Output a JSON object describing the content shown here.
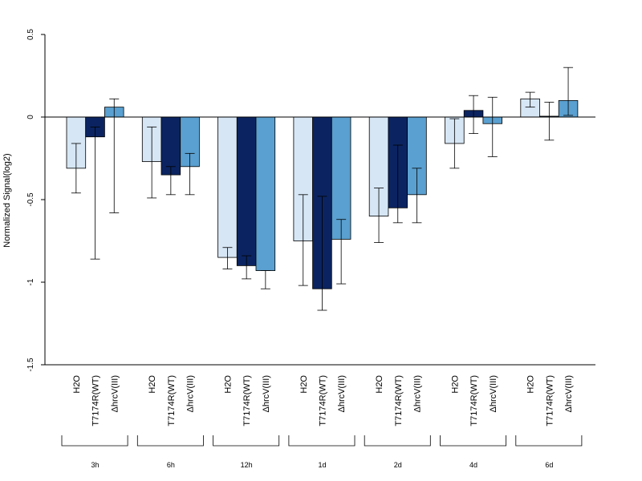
{
  "chart_data": {
    "type": "bar",
    "ylabel": "Normalized Signal(log2)",
    "ylim": [
      -1.5,
      0.5
    ],
    "yticks": [
      0.5,
      0,
      -0.5,
      -1,
      -1.5
    ],
    "ytick_labels": [
      "0.5",
      "0",
      "-0.5",
      "-1",
      "-1.5"
    ],
    "treatments": [
      "H2O",
      "T7174R(WT)",
      "ΔhrcV(III)"
    ],
    "groups": [
      "3h",
      "6h",
      "12h",
      "1d",
      "2d",
      "4d",
      "6d"
    ],
    "colors": [
      "#d6e6f5",
      "#0b2461",
      "#5aa0d0"
    ],
    "series": [
      {
        "values": [
          -0.31,
          -0.27,
          -0.85,
          -0.75,
          -0.6,
          -0.16,
          0.11
        ],
        "err_low": [
          -0.46,
          -0.49,
          -0.92,
          -1.02,
          -0.76,
          -0.31,
          0.06
        ],
        "err_high": [
          -0.16,
          -0.06,
          -0.79,
          -0.47,
          -0.43,
          -0.01,
          0.15
        ]
      },
      {
        "values": [
          -0.12,
          -0.35,
          -0.9,
          -1.04,
          -0.55,
          0.04,
          0.005
        ],
        "err_low": [
          -0.86,
          -0.47,
          -0.98,
          -1.17,
          -0.64,
          -0.1,
          -0.14
        ],
        "err_high": [
          -0.06,
          -0.3,
          -0.84,
          -0.48,
          -0.17,
          0.13,
          0.09
        ]
      },
      {
        "values": [
          0.06,
          -0.3,
          -0.93,
          -0.74,
          -0.47,
          -0.04,
          0.1
        ],
        "err_low": [
          -0.58,
          -0.47,
          -1.04,
          -1.01,
          -0.64,
          -0.24,
          0.01
        ],
        "err_high": [
          0.11,
          -0.22,
          -0.93,
          -0.62,
          -0.31,
          0.12,
          0.3
        ]
      }
    ]
  }
}
